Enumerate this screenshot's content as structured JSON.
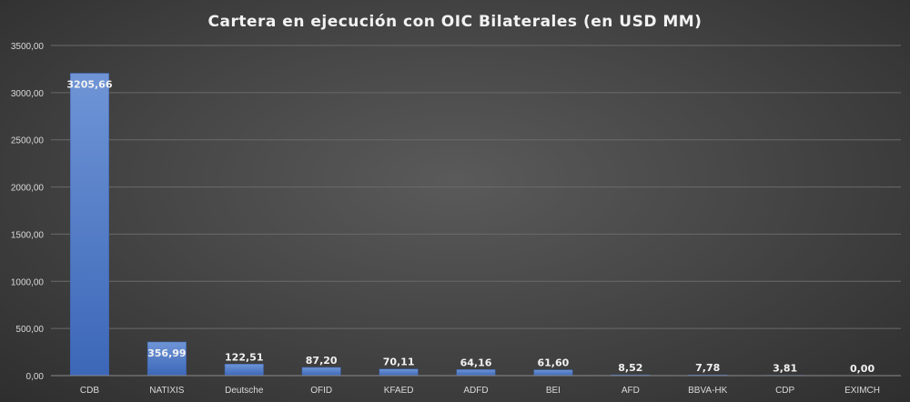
{
  "chart_data": {
    "type": "bar",
    "title": "Cartera  en ejecución  con OIC Bilaterales  (en USD MM)",
    "categories": [
      "CDB",
      "NATIXIS",
      "Deutsche",
      "OFID",
      "KFAED",
      "ADFD",
      "BEI",
      "AFD",
      "BBVA-HK",
      "CDP",
      "EXIMCH"
    ],
    "values": [
      3205.66,
      356.99,
      122.51,
      87.2,
      70.11,
      64.16,
      61.6,
      8.52,
      7.78,
      3.81,
      0.0
    ],
    "value_labels": [
      "3205,66",
      "356,99",
      "122,51",
      "87,20",
      "70,11",
      "64,16",
      "61,60",
      "8,52",
      "7,78",
      "3,81",
      "0,00"
    ],
    "y_ticks": [
      0,
      500,
      1000,
      1500,
      2000,
      2500,
      3000,
      3500
    ],
    "y_tick_labels": [
      "0,00",
      "500,00",
      "1000,00",
      "1500,00",
      "2000,00",
      "2500,00",
      "3000,00",
      "3500,00"
    ],
    "ylim": [
      0,
      3500
    ],
    "xlabel": "",
    "ylabel": "",
    "grid": true,
    "legend": "none",
    "bar_color": "#4472c4"
  }
}
